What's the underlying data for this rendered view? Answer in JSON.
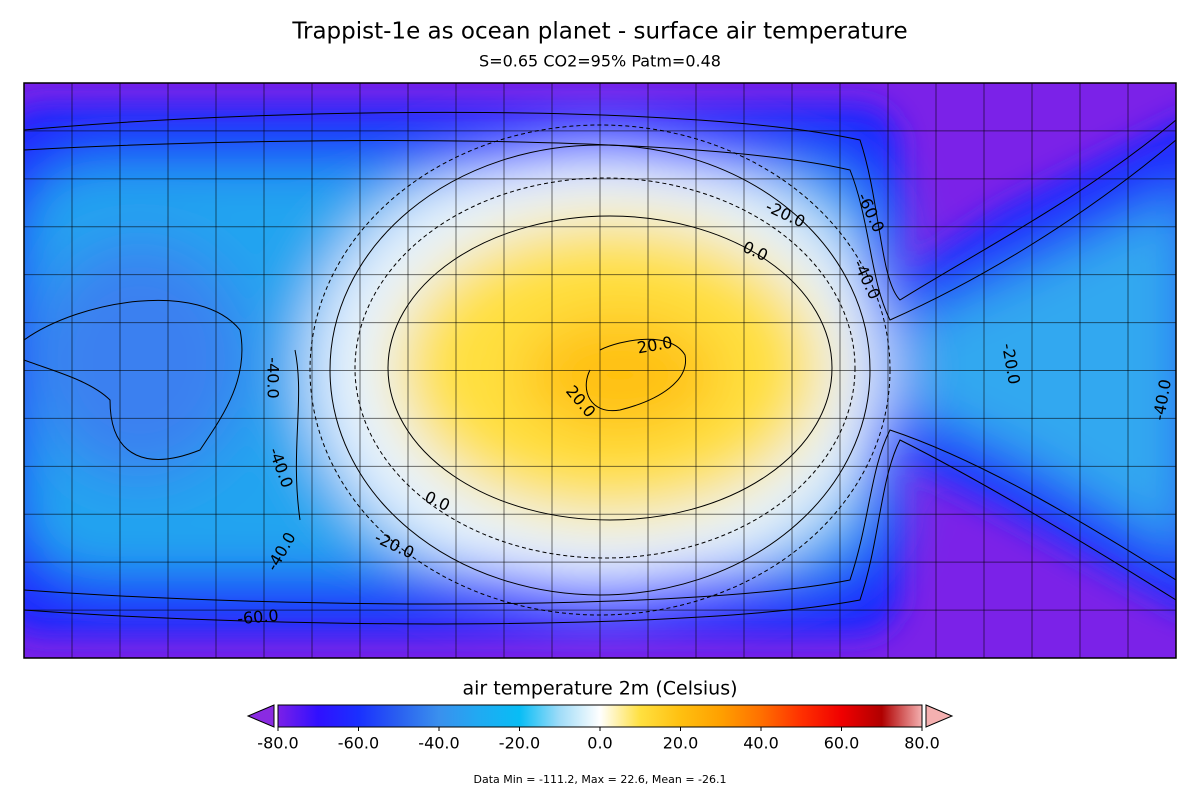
{
  "chart_data": {
    "type": "contour",
    "title": "Trappist-1e as ocean planet - surface air temperature",
    "subtitle": "S=0.65 CO2=95% Patm=0.48",
    "colorbar": {
      "label": "air temperature 2m (Celsius)",
      "clim": [
        -80,
        80
      ],
      "ticks": [
        {
          "value": -80,
          "label": "-80.0"
        },
        {
          "value": -60,
          "label": "-60.0"
        },
        {
          "value": -40,
          "label": "-40.0"
        },
        {
          "value": -20,
          "label": "-20.0"
        },
        {
          "value": 0,
          "label": "0.0"
        },
        {
          "value": 20,
          "label": "20.0"
        },
        {
          "value": 40,
          "label": "40.0"
        },
        {
          "value": 60,
          "label": "60.0"
        },
        {
          "value": 80,
          "label": "80.0"
        }
      ],
      "colors": [
        "#7b20e8",
        "#3010ff",
        "#1a30ff",
        "#2a60f0",
        "#3a90ee",
        "#20aaf2",
        "#08bdf5",
        "#a0dcf8",
        "#ffffff",
        "#ffe040",
        "#ffc010",
        "#ffa000",
        "#ff7000",
        "#ff3000",
        "#f00000",
        "#b00000",
        "#f4b0b0"
      ],
      "extend_colors": [
        "#8a2be2",
        "#f4b0b0"
      ]
    },
    "contour_labels": [
      "-20.0",
      "0.0",
      "-60.0",
      "-40.0",
      "20.0",
      "20.0",
      "0.0",
      "-20.0",
      "-40.0",
      "-60.0",
      "-40.0",
      "-40.0",
      "-20.0",
      "-40.0"
    ],
    "footnote": "Data Min = -111.2, Max = 22.6, Mean = -26.1"
  }
}
